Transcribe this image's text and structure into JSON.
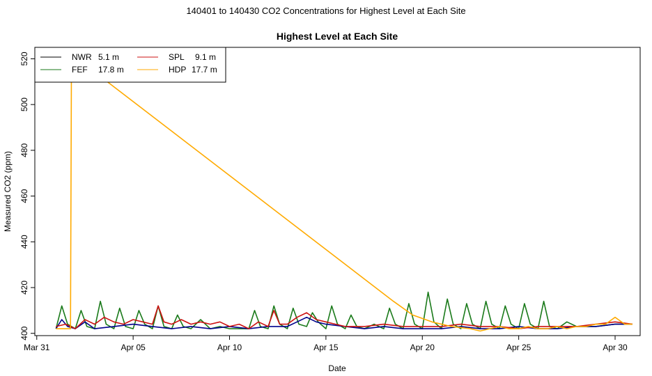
{
  "page_title": "140401  to  140430 CO2 Concentrations for Highest Level at Each Site",
  "colors": {
    "NWR": "#000000",
    "FEF": "#1a7a1a",
    "SPL": "#cc1111",
    "HDP": "#ffaa00",
    "NWR_line": "#00008b"
  },
  "chart_data": {
    "type": "line",
    "title": "Highest Level at Each Site",
    "xlabel": "Date",
    "ylabel": "Measured CO2 (ppm)",
    "x_ticks": [
      "Mar 31",
      "Apr 05",
      "Apr 10",
      "Apr 15",
      "Apr 20",
      "Apr 25",
      "Apr 30"
    ],
    "x_tick_days": [
      0,
      5,
      10,
      15,
      20,
      25,
      30
    ],
    "y_ticks": [
      400,
      420,
      440,
      460,
      480,
      500,
      520
    ],
    "xlim": [
      -0.1,
      31.3
    ],
    "ylim": [
      399,
      525
    ],
    "grid": false,
    "legend_position": "top-left",
    "legend": [
      {
        "name": "NWR",
        "height": "5.1 m"
      },
      {
        "name": "FEF",
        "height": "17.8 m"
      },
      {
        "name": "SPL",
        "height": "9.1 m"
      },
      {
        "name": "HDP",
        "height": "17.7 m"
      }
    ],
    "series": [
      {
        "name": "NWR",
        "x": [
          1,
          1.3,
          1.6,
          2,
          2.5,
          3,
          4,
          5,
          6,
          7,
          8,
          9,
          10,
          11,
          12,
          13,
          13.5,
          14,
          14.5,
          15,
          16,
          17,
          18,
          19,
          20,
          21,
          22,
          23,
          24,
          25,
          26,
          27,
          28,
          29,
          30,
          30.9
        ],
        "y": [
          402,
          406,
          403,
          402,
          405,
          402,
          403,
          404,
          403,
          402,
          403,
          402,
          403,
          402,
          403,
          403,
          405,
          407,
          405,
          404,
          403,
          402,
          403,
          402,
          402,
          402,
          403,
          402,
          402,
          403,
          402,
          402,
          403,
          403,
          404,
          404
        ]
      },
      {
        "name": "FEF",
        "x": [
          1,
          1.3,
          1.6,
          2.0,
          2.3,
          2.6,
          3.0,
          3.3,
          3.6,
          4.0,
          4.3,
          4.6,
          5.0,
          5.3,
          5.6,
          6.0,
          6.3,
          6.6,
          7.0,
          7.3,
          7.6,
          8.0,
          8.5,
          9.0,
          9.5,
          10.0,
          11.0,
          11.3,
          11.6,
          12.0,
          12.3,
          12.6,
          13.0,
          13.3,
          13.6,
          14.0,
          14.3,
          14.6,
          15.0,
          15.3,
          15.6,
          16.0,
          16.3,
          16.6,
          17.0,
          17.5,
          18.0,
          18.3,
          18.6,
          19.0,
          19.3,
          19.6,
          20.0,
          20.3,
          20.6,
          21.0,
          21.3,
          21.6,
          22.0,
          22.3,
          22.6,
          23.0,
          23.3,
          23.6,
          24.0,
          24.3,
          24.6,
          25.0,
          25.3,
          25.6,
          26.0,
          26.3,
          26.6,
          27.0,
          27.5,
          28.0,
          29.0,
          30.0,
          30.9
        ],
        "y": [
          402,
          412,
          404,
          402,
          410,
          403,
          402,
          414,
          404,
          402,
          411,
          403,
          402,
          410,
          404,
          402,
          412,
          403,
          402,
          408,
          403,
          402,
          406,
          402,
          403,
          402,
          402,
          410,
          403,
          402,
          412,
          404,
          402,
          411,
          404,
          403,
          409,
          405,
          402,
          412,
          404,
          402,
          408,
          403,
          402,
          404,
          402,
          411,
          404,
          402,
          413,
          404,
          402,
          418,
          405,
          402,
          415,
          404,
          402,
          413,
          404,
          402,
          414,
          404,
          402,
          412,
          404,
          402,
          413,
          404,
          402,
          414,
          403,
          402,
          405,
          403,
          403,
          404,
          404
        ]
      },
      {
        "name": "SPL",
        "x": [
          1,
          1.5,
          2,
          2.5,
          3,
          3.5,
          4,
          4.5,
          5,
          5.5,
          6,
          6.3,
          6.6,
          7,
          7.5,
          8,
          8.5,
          9,
          9.5,
          10,
          10.5,
          11,
          11.5,
          12,
          12.3,
          12.6,
          13,
          13.5,
          14,
          14.5,
          15,
          15.5,
          16,
          17,
          18,
          19,
          20,
          21,
          22,
          23,
          24,
          25,
          26,
          27,
          28,
          29,
          30,
          30.9
        ],
        "y": [
          403,
          404,
          402,
          406,
          404,
          407,
          405,
          404,
          406,
          405,
          404,
          412,
          405,
          404,
          406,
          404,
          405,
          404,
          405,
          403,
          404,
          402,
          405,
          403,
          410,
          404,
          404,
          407,
          409,
          406,
          405,
          404,
          403,
          403,
          404,
          403,
          403,
          403,
          404,
          403,
          403,
          402,
          403,
          403,
          403,
          404,
          405,
          404
        ]
      },
      {
        "name": "HDP",
        "x": [
          1,
          1.6,
          1.75,
          1.8,
          18.5,
          19.5,
          20.5,
          21.5,
          22.5,
          23,
          23.5,
          24,
          24.5,
          25,
          25.5,
          26,
          26.5,
          27,
          27.5,
          28,
          28.5,
          29,
          29.5,
          30,
          30.5,
          30.9
        ],
        "y": [
          402,
          402,
          402,
          522,
          414,
          408,
          405,
          403,
          402,
          401,
          402,
          403,
          402,
          402,
          403,
          402,
          402,
          403,
          402,
          403,
          403,
          404,
          404,
          407,
          404,
          404
        ]
      }
    ]
  }
}
